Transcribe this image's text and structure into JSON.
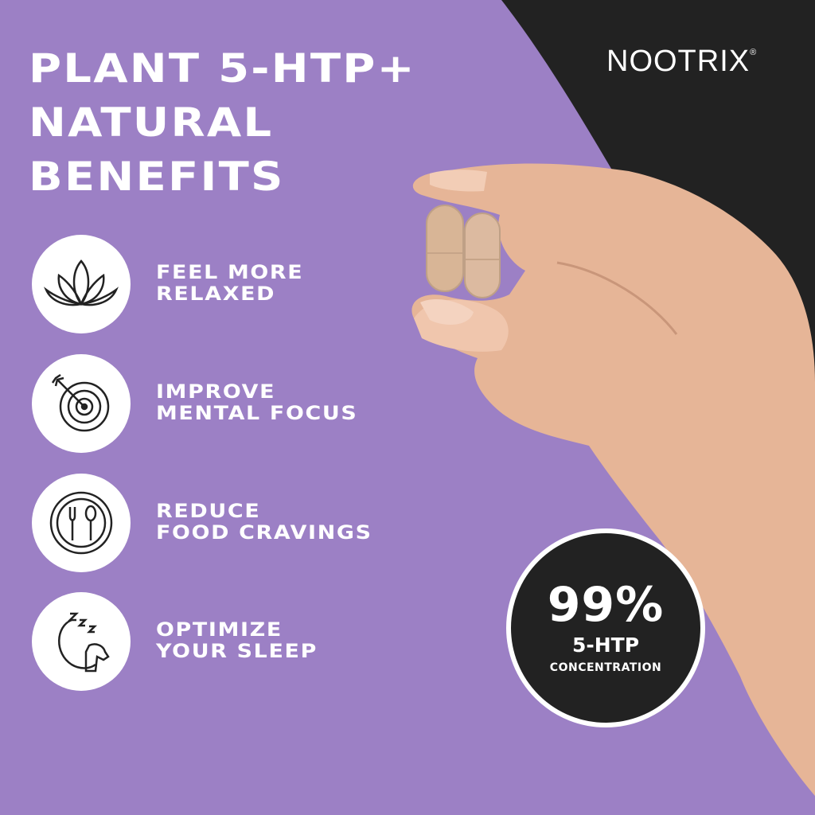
{
  "brand": {
    "name": "NOOTRIX",
    "mark": "®"
  },
  "headline": {
    "lines": [
      "PLANT 5-HTP+",
      "NATURAL",
      "BENEFITS"
    ]
  },
  "benefits": [
    {
      "icon": "lotus-icon",
      "line1": "FEEL MORE",
      "line2": "RELAXED"
    },
    {
      "icon": "target-icon",
      "line1": "IMPROVE",
      "line2": "MENTAL FOCUS"
    },
    {
      "icon": "fork-spoon-plate-icon",
      "line1": "REDUCE",
      "line2": "FOOD CRAVINGS"
    },
    {
      "icon": "sleep-moon-icon",
      "line1": "OPTIMIZE",
      "line2": "YOUR SLEEP"
    }
  ],
  "badge": {
    "percent": "99%",
    "label": "5-HTP",
    "sublabel": "CONCENTRATION"
  },
  "colors": {
    "background": "#9c80c5",
    "dark": "#222222",
    "text": "#ffffff",
    "skin": "#e8b89a",
    "capsule": "#d9b89c"
  }
}
